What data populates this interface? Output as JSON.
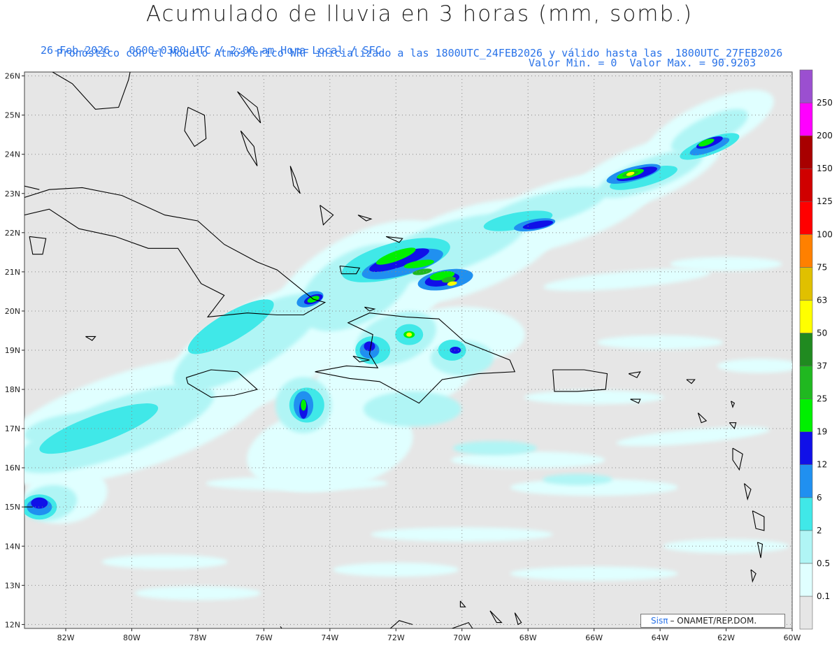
{
  "header": {
    "title": "Acumulado de lluvia en 3 horas (mm, somb.)",
    "subtitle_left": "26-Feb-2026   0600-0300 UTC / 2:00 am Hora Local / SFC",
    "subtitle_right": "Valor Min. = 0  Valor Max. = 90.9203",
    "subtitle_line2": "Pronóstico con el Modelo Atmósferico WRF inicializado a las 1800UTC_24FEB2026 y válido hasta las  1800UTC_27FEB2026"
  },
  "map": {
    "lat_labels": [
      "12N",
      "13N",
      "14N",
      "15N",
      "16N",
      "17N",
      "18N",
      "19N",
      "20N",
      "21N",
      "22N",
      "23N",
      "24N",
      "25N",
      "26N"
    ],
    "lon_labels": [
      "82W",
      "80W",
      "78W",
      "76W",
      "74W",
      "72W",
      "70W",
      "68W",
      "66W",
      "64W",
      "62W",
      "60W"
    ],
    "background_color": "#e6e6e6",
    "grid": "dotted"
  },
  "legend": {
    "labels": [
      "0.1",
      "0.5",
      "2",
      "6",
      "12",
      "19",
      "25",
      "37",
      "50",
      "63",
      "75",
      "100",
      "125",
      "150",
      "200",
      "250"
    ],
    "colors": [
      "#e6e6e6",
      "#e0ffff",
      "#b0f5f5",
      "#40e8e8",
      "#2090f0",
      "#1010e8",
      "#00f000",
      "#20b820",
      "#208a20",
      "#ffff00",
      "#e0c000",
      "#ff8000",
      "#ff0000",
      "#d00000",
      "#a80000",
      "#ff00ff",
      "#9b4fd0"
    ]
  },
  "credit": {
    "brand": "Sisπ",
    "text": "– ONAMET/REP.DOM."
  }
}
